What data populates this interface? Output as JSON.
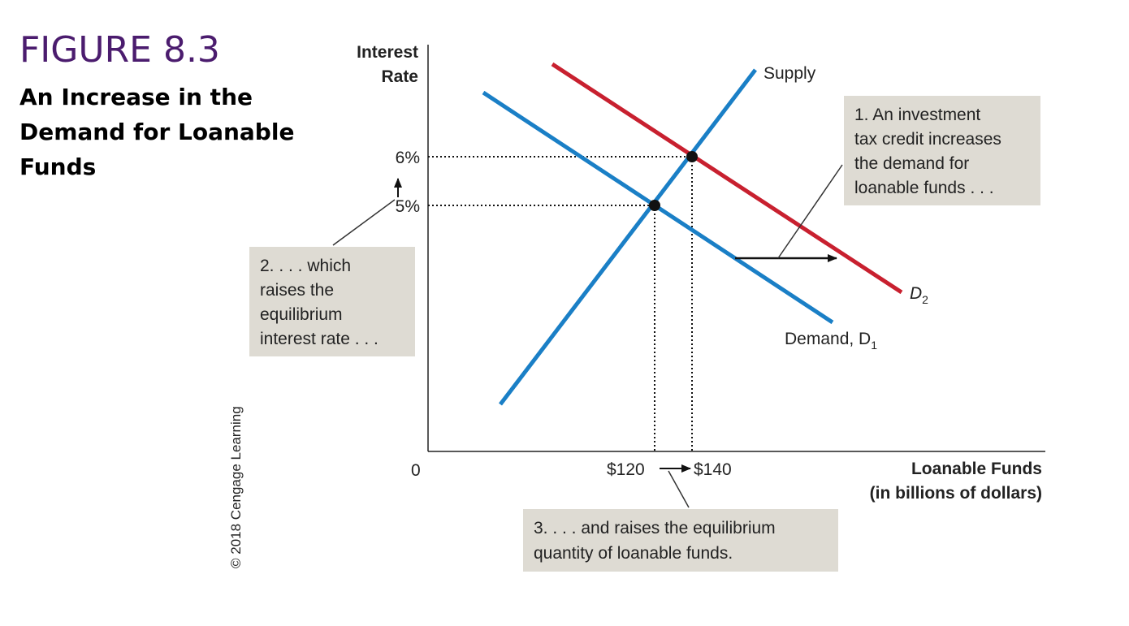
{
  "figure": {
    "number": "FIGURE 8.3",
    "title": "An Increase in the Demand for Loanable Funds"
  },
  "copyright": "© 2018 Cengage Learning",
  "chart_data": {
    "type": "line",
    "ylabel": [
      "Interest",
      "Rate"
    ],
    "xlabel": [
      "Loanable Funds",
      "(in billions of dollars)"
    ],
    "origin_label": "0",
    "y_ticks": [
      {
        "value": 5,
        "label": "5%"
      },
      {
        "value": 6,
        "label": "6%"
      }
    ],
    "x_ticks": [
      {
        "value": 120,
        "label": "$120"
      },
      {
        "value": 140,
        "label": "$140"
      }
    ],
    "series": [
      {
        "name": "Supply",
        "color": "#1a7fc6"
      },
      {
        "name": "Demand, D",
        "subscript": "1",
        "color": "#1a7fc6"
      },
      {
        "name": "D",
        "subscript": "2",
        "color": "#c8202f"
      }
    ],
    "equilibria": [
      {
        "x": 120,
        "y": 5
      },
      {
        "x": 140,
        "y": 6
      }
    ],
    "annotations": {
      "note1": [
        "1. An investment",
        "tax credit increases",
        "the demand for",
        "loanable funds . . ."
      ],
      "note2": [
        "2. . . . which",
        "raises the",
        "equilibrium",
        "interest rate . . ."
      ],
      "note3": [
        "3. . . . and raises the equilibrium",
        "quantity of loanable funds."
      ]
    }
  }
}
